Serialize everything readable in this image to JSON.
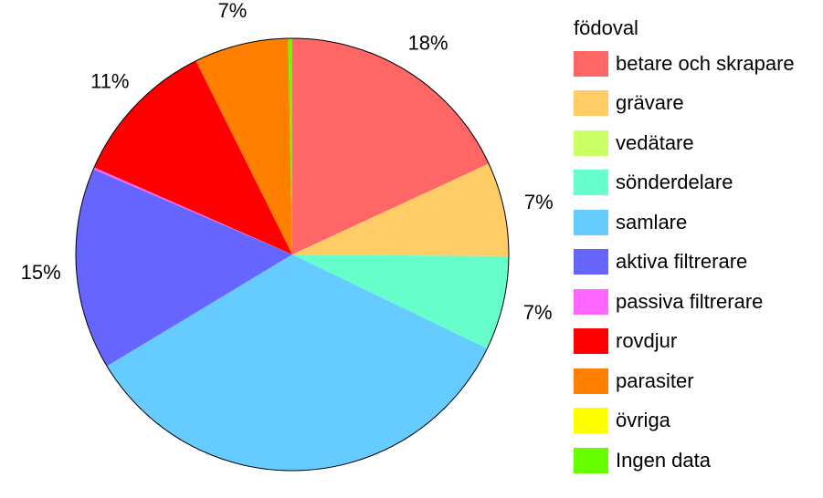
{
  "chart_data": {
    "type": "pie",
    "legend_title": "födoval",
    "legend_position": "right",
    "slices": [
      {
        "label": "betare och skrapare",
        "value": 18,
        "display": "18%",
        "color": "#FF6666"
      },
      {
        "label": "grävare",
        "value": 7,
        "display": "7%",
        "color": "#FFCC66"
      },
      {
        "label": "vedätare",
        "value": 0,
        "display": "",
        "color": "#CCFF66"
      },
      {
        "label": "sönderdelare",
        "value": 7,
        "display": "7%",
        "color": "#66FFCC"
      },
      {
        "label": "samlare",
        "value": 34,
        "display": "34%",
        "color": "#66CCFF"
      },
      {
        "label": "aktiva filtrerare",
        "value": 15,
        "display": "15%",
        "color": "#6666FF"
      },
      {
        "label": "passiva filtrerare",
        "value": 0.15,
        "display": "",
        "color": "#FF66FF"
      },
      {
        "label": "rovdjur",
        "value": 11,
        "display": "11%",
        "color": "#FF0000"
      },
      {
        "label": "parasiter",
        "value": 7,
        "display": "7%",
        "color": "#FF8000"
      },
      {
        "label": "övriga",
        "value": 0,
        "display": "",
        "color": "#FFFF00"
      },
      {
        "label": "Ingen data",
        "value": 0.3,
        "display": "",
        "color": "#66FF00"
      }
    ]
  }
}
